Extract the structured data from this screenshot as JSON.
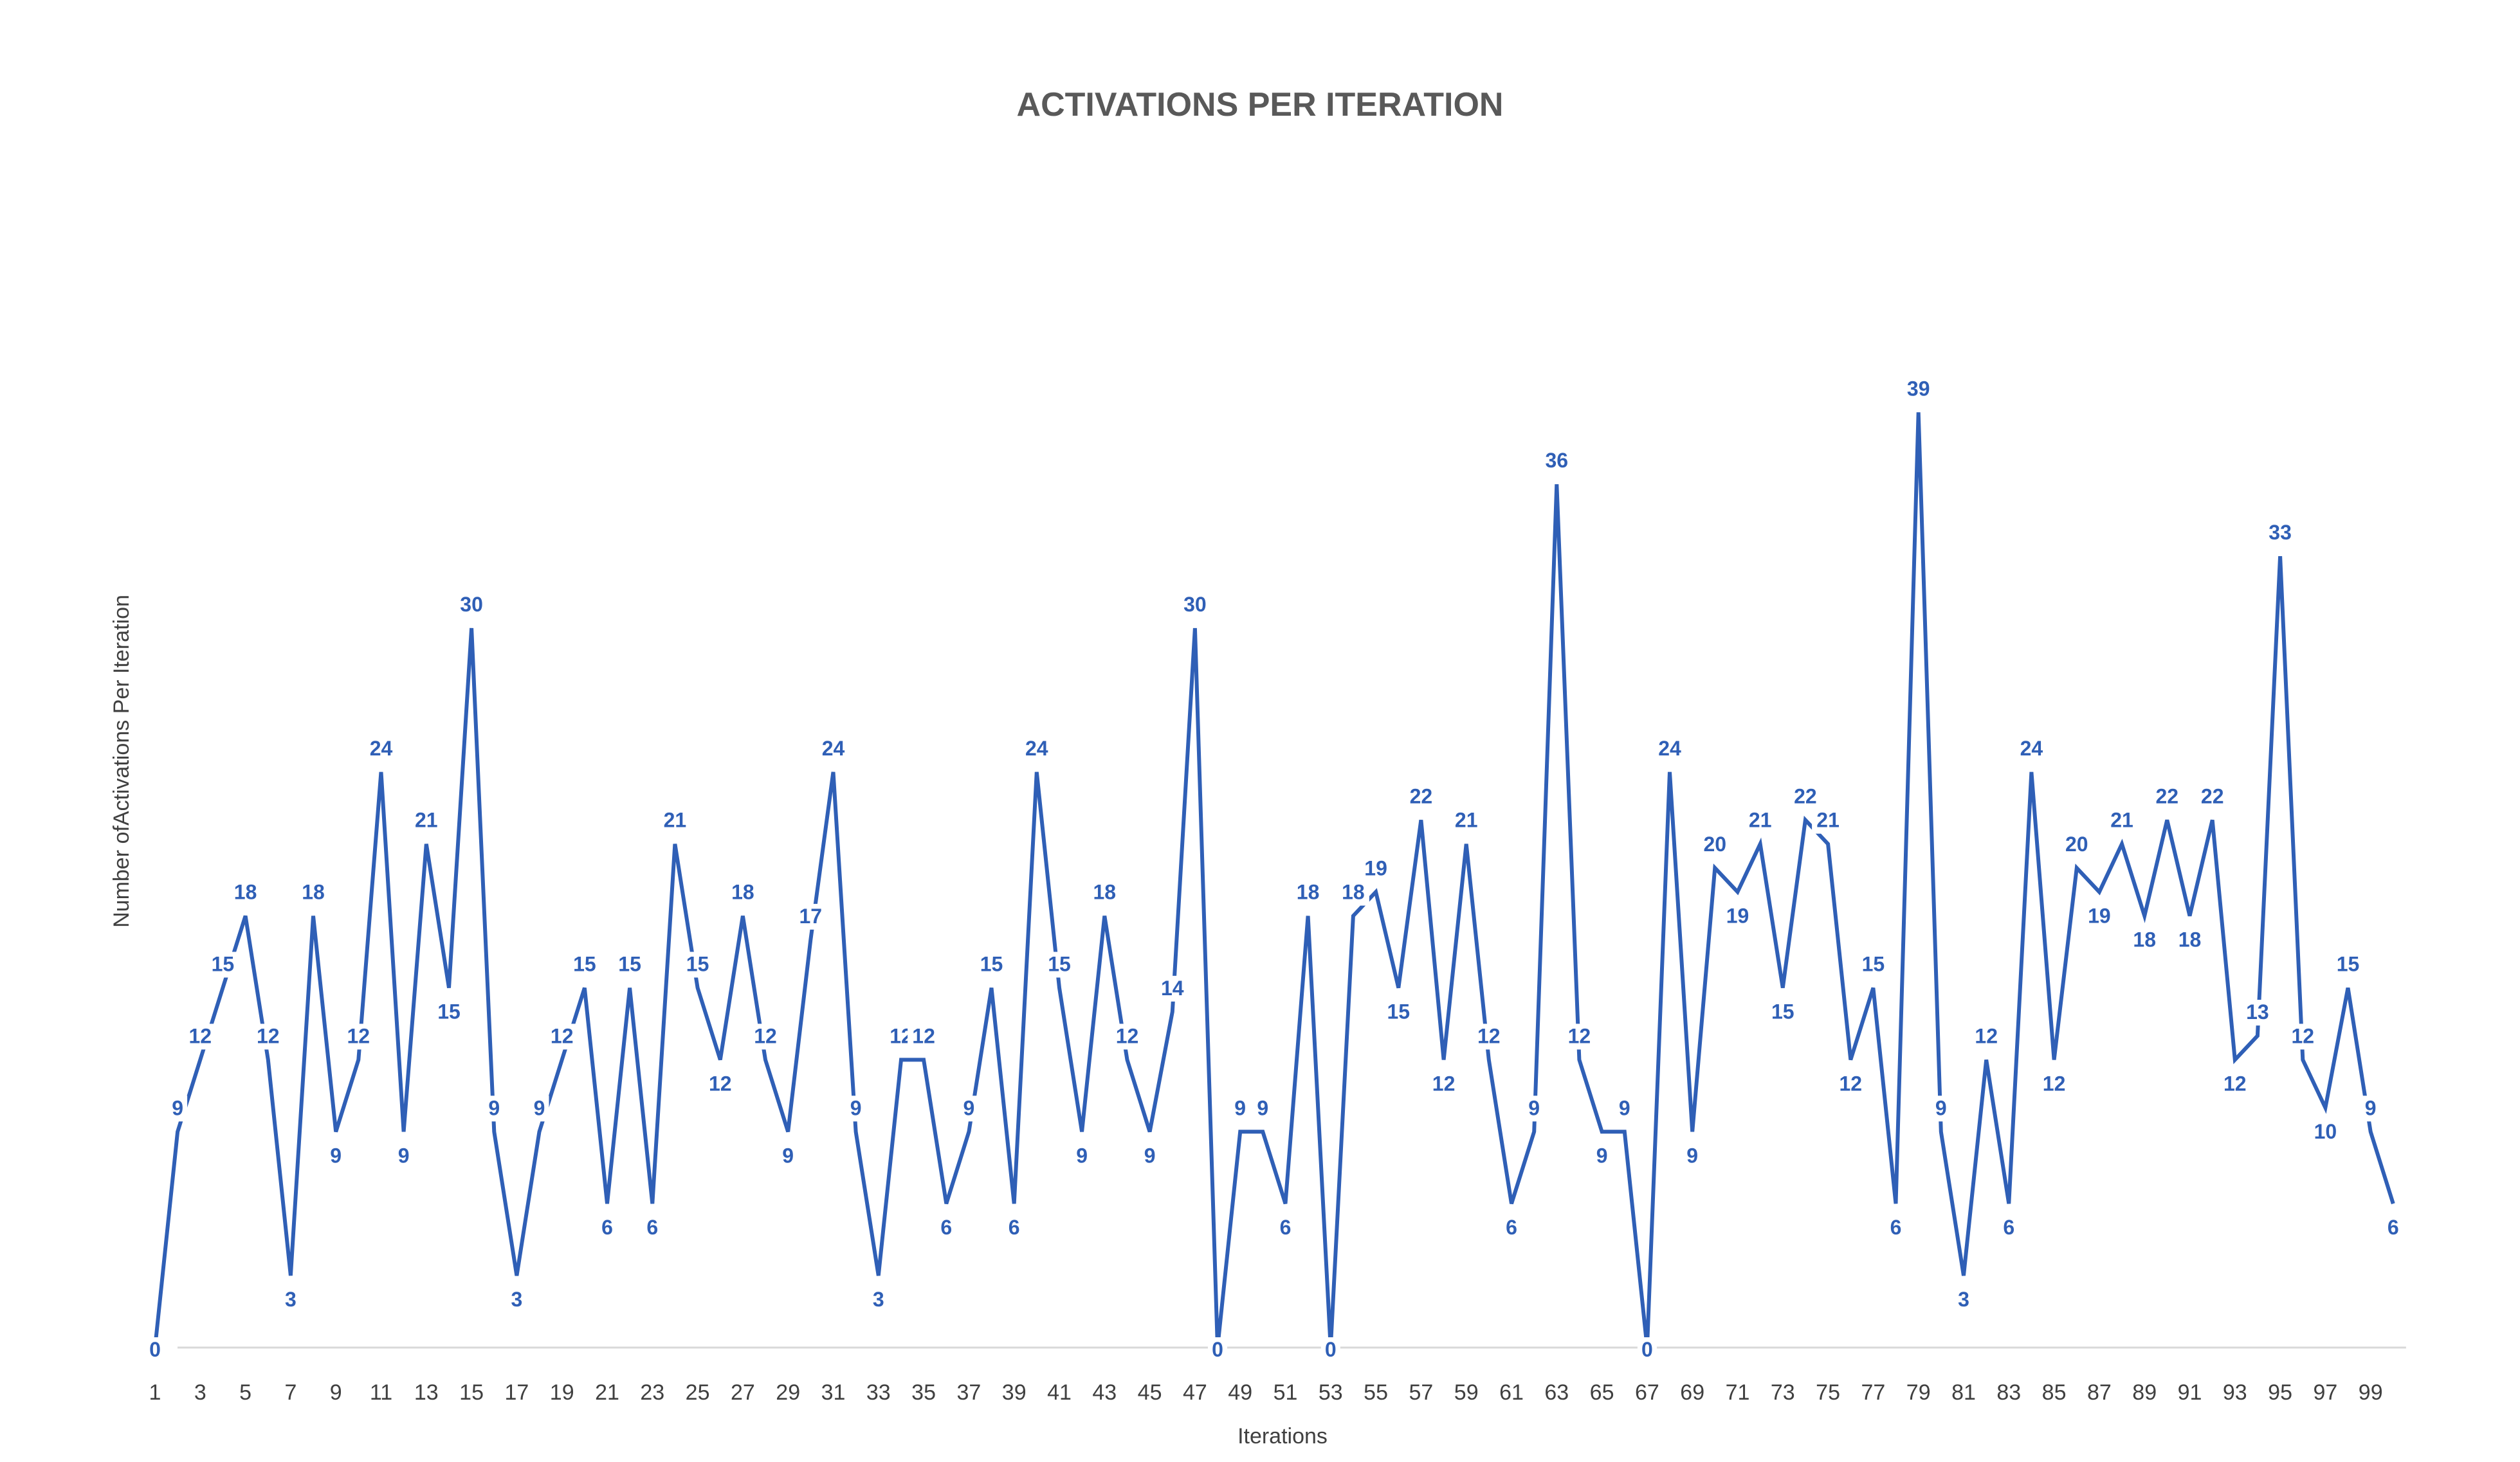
{
  "chart_data": {
    "type": "line",
    "title": "ACTIVATIONS PER ITERATION",
    "xlabel": "Iterations",
    "ylabel": "Number ofActivations Per Iteration",
    "ylim": [
      0,
      42
    ],
    "grid": false,
    "legend": "none",
    "color": "#2f5fb6",
    "axis_color": "#d9d9d9",
    "x": [
      1,
      2,
      3,
      4,
      5,
      6,
      7,
      8,
      9,
      10,
      11,
      12,
      13,
      14,
      15,
      16,
      17,
      18,
      19,
      20,
      21,
      22,
      23,
      24,
      25,
      26,
      27,
      28,
      29,
      30,
      31,
      32,
      33,
      34,
      35,
      36,
      37,
      38,
      39,
      40,
      41,
      42,
      43,
      44,
      45,
      46,
      47,
      48,
      49,
      50,
      51,
      52,
      53,
      54,
      55,
      56,
      57,
      58,
      59,
      60,
      61,
      62,
      63,
      64,
      65,
      66,
      67,
      68,
      69,
      70,
      71,
      72,
      73,
      74,
      75,
      76,
      77,
      78,
      79,
      80,
      81,
      82,
      83,
      84,
      85,
      86,
      87,
      88,
      89,
      90,
      91,
      92,
      93,
      94,
      95,
      96,
      97,
      98,
      99,
      100
    ],
    "x_tick_labels": [
      "1",
      "3",
      "5",
      "7",
      "9",
      "11",
      "13",
      "15",
      "17",
      "19",
      "21",
      "23",
      "25",
      "27",
      "29",
      "31",
      "33",
      "35",
      "37",
      "39",
      "41",
      "43",
      "45",
      "47",
      "49",
      "51",
      "53",
      "55",
      "57",
      "59",
      "61",
      "63",
      "65",
      "67",
      "69",
      "71",
      "73",
      "75",
      "77",
      "79",
      "81",
      "83",
      "85",
      "87",
      "89",
      "91",
      "93",
      "95",
      "97",
      "99"
    ],
    "series": [
      {
        "values": [
          0,
          9,
          12,
          15,
          18,
          12,
          3,
          18,
          9,
          12,
          24,
          9,
          21,
          15,
          30,
          9,
          3,
          9,
          12,
          15,
          6,
          15,
          6,
          21,
          15,
          12,
          18,
          12,
          9,
          17,
          24,
          9,
          3,
          12,
          12,
          6,
          9,
          15,
          6,
          24,
          15,
          9,
          18,
          12,
          9,
          14,
          30,
          0,
          9,
          9,
          6,
          18,
          0,
          18,
          19,
          15,
          22,
          12,
          21,
          12,
          6,
          9,
          36,
          12,
          9,
          9,
          0,
          24,
          9,
          20,
          19,
          21,
          15,
          22,
          21,
          12,
          15,
          6,
          39,
          9,
          3,
          12,
          6,
          24,
          12,
          20,
          19,
          21,
          18,
          22,
          18,
          22,
          12,
          13,
          33,
          12,
          10,
          15,
          9,
          6
        ]
      }
    ]
  }
}
